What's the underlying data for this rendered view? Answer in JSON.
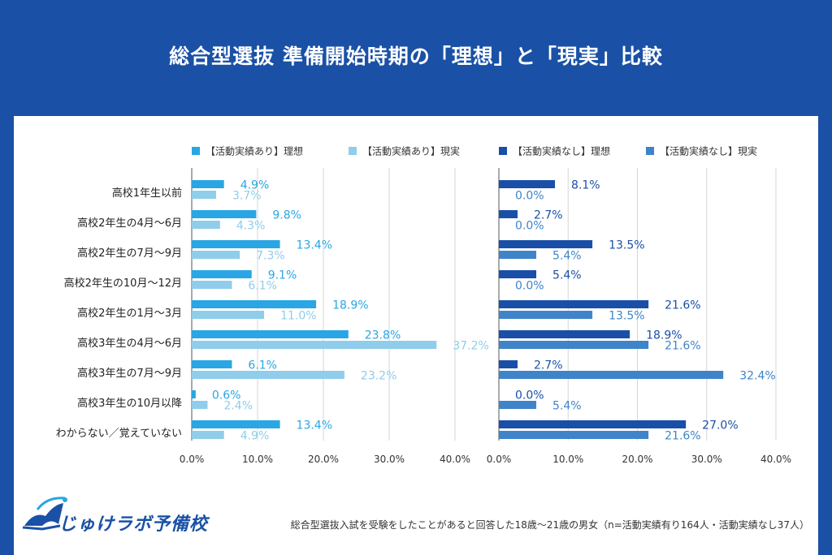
{
  "title": "総合型選抜 準備開始時期の「理想」と「現実」比較",
  "brand": {
    "logo_text": "じゅけラボ予備校"
  },
  "footnote": "総合型選抜入試を受験をしたことがあると回答した18歳〜21歳の男女（n=活動実績有り164人・活動実績なし37人）",
  "chart_data": [
    {
      "type": "bar",
      "orientation": "horizontal",
      "categories": [
        "高校1年生以前",
        "高校2年生の4月〜6月",
        "高校2年生の7月〜9月",
        "高校2年生の10月〜12月",
        "高校2年生の1月〜3月",
        "高校3年生の4月〜6月",
        "高校3年生の7月〜9月",
        "高校3年生の10月以降",
        "わからない／覚えていない"
      ],
      "series": [
        {
          "name": "【活動実績あり】理想",
          "color": "#29a6e3",
          "values": [
            4.9,
            9.8,
            13.4,
            9.1,
            18.9,
            23.8,
            6.1,
            0.6,
            13.4
          ]
        },
        {
          "name": "【活動実績あり】現実",
          "color": "#8fcdeb",
          "values": [
            3.7,
            4.3,
            7.3,
            6.1,
            11.0,
            37.2,
            23.2,
            2.4,
            4.9
          ]
        }
      ],
      "xlim": [
        0,
        40
      ],
      "ticks": [
        "0.0%",
        "10.0%",
        "20.0%",
        "30.0%",
        "40.0%"
      ],
      "unit": "%",
      "grid": true,
      "legend": "top"
    },
    {
      "type": "bar",
      "orientation": "horizontal",
      "categories": [
        "高校1年生以前",
        "高校2年生の4月〜6月",
        "高校2年生の7月〜9月",
        "高校2年生の10月〜12月",
        "高校2年生の1月〜3月",
        "高校3年生の4月〜6月",
        "高校3年生の7月〜9月",
        "高校3年生の10月以降",
        "わからない／覚えていない"
      ],
      "series": [
        {
          "name": "【活動実績なし】理想",
          "color": "#1a4fa8",
          "values": [
            8.1,
            2.7,
            13.5,
            5.4,
            21.6,
            18.9,
            2.7,
            0.0,
            27.0
          ]
        },
        {
          "name": "【活動実績なし】現実",
          "color": "#3f84c9",
          "values": [
            0.0,
            0.0,
            5.4,
            0.0,
            13.5,
            21.6,
            32.4,
            5.4,
            21.6
          ]
        }
      ],
      "xlim": [
        0,
        40
      ],
      "ticks": [
        "0.0%",
        "10.0%",
        "20.0%",
        "30.0%",
        "40.0%"
      ],
      "unit": "%",
      "grid": true,
      "legend": "top"
    }
  ]
}
